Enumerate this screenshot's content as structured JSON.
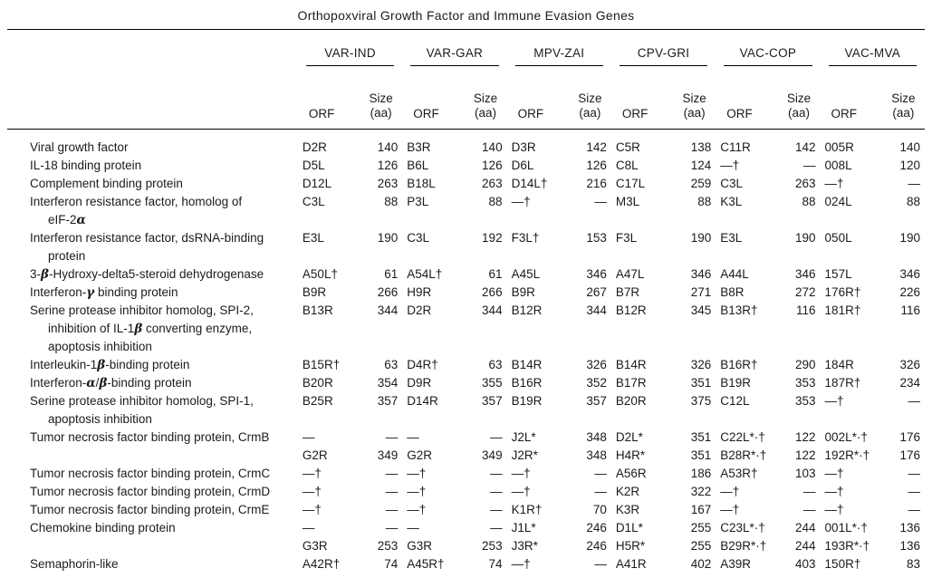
{
  "title": "Orthopoxviral Growth Factor and Immune Evasion Genes",
  "columns": {
    "orf_label": "ORF",
    "size_label_line1": "Size",
    "size_label_line2": "(aa)"
  },
  "viruses": [
    "VAR-IND",
    "VAR-GAR",
    "MPV-ZAI",
    "CPV-GRI",
    "VAC-COP",
    "VAC-MVA"
  ],
  "rows": [
    {
      "label": "Viral growth factor",
      "indent": false,
      "cells": [
        "D2R",
        "140",
        "B3R",
        "140",
        "D3R",
        "142",
        "C5R",
        "138",
        "C11R",
        "142",
        "005R",
        "140"
      ]
    },
    {
      "label": "IL-18 binding protein",
      "indent": false,
      "cells": [
        "D5L",
        "126",
        "B6L",
        "126",
        "D6L",
        "126",
        "C8L",
        "124",
        "—†",
        "—",
        "008L",
        "120"
      ]
    },
    {
      "label": "Complement binding protein",
      "indent": false,
      "cells": [
        "D12L",
        "263",
        "B18L",
        "263",
        "D14L†",
        "216",
        "C17L",
        "259",
        "C3L",
        "263",
        "—†",
        "—"
      ]
    },
    {
      "label": "Interferon resistance factor, homolog of",
      "indent": false,
      "cells": [
        "C3L",
        "88",
        "P3L",
        "88",
        "—†",
        "—",
        "M3L",
        "88",
        "K3L",
        "88",
        "024L",
        "88"
      ]
    },
    {
      "label": "eIF-2α",
      "indent": true,
      "cells": []
    },
    {
      "label": "Interferon resistance factor, dsRNA-binding",
      "indent": false,
      "cells": [
        "E3L",
        "190",
        "C3L",
        "192",
        "F3L†",
        "153",
        "F3L",
        "190",
        "E3L",
        "190",
        "050L",
        "190"
      ]
    },
    {
      "label": "protein",
      "indent": true,
      "cells": []
    },
    {
      "label": "3-β-Hydroxy-delta5-steroid dehydrogenase",
      "indent": false,
      "cells": [
        "A50L†",
        "61",
        "A54L†",
        "61",
        "A45L",
        "346",
        "A47L",
        "346",
        "A44L",
        "346",
        "157L",
        "346"
      ]
    },
    {
      "label": "Interferon-γ binding protein",
      "indent": false,
      "cells": [
        "B9R",
        "266",
        "H9R",
        "266",
        "B9R",
        "267",
        "B7R",
        "271",
        "B8R",
        "272",
        "176R†",
        "226"
      ]
    },
    {
      "label": "Serine protease inhibitor homolog, SPI-2,",
      "indent": false,
      "cells": [
        "B13R",
        "344",
        "D2R",
        "344",
        "B12R",
        "344",
        "B12R",
        "345",
        "B13R†",
        "116",
        "181R†",
        "116"
      ]
    },
    {
      "label": "inhibition of IL-1β converting enzyme,",
      "indent": true,
      "cells": []
    },
    {
      "label": "apoptosis inhibition",
      "indent": true,
      "cells": []
    },
    {
      "label": "Interleukin-1β-binding protein",
      "indent": false,
      "cells": [
        "B15R†",
        "63",
        "D4R†",
        "63",
        "B14R",
        "326",
        "B14R",
        "326",
        "B16R†",
        "290",
        "184R",
        "326"
      ]
    },
    {
      "label": "Interferon-α/β-binding protein",
      "indent": false,
      "cells": [
        "B20R",
        "354",
        "D9R",
        "355",
        "B16R",
        "352",
        "B17R",
        "351",
        "B19R",
        "353",
        "187R†",
        "234"
      ]
    },
    {
      "label": "Serine protease inhibitor homolog, SPI-1,",
      "indent": false,
      "cells": [
        "B25R",
        "357",
        "D14R",
        "357",
        "B19R",
        "357",
        "B20R",
        "375",
        "C12L",
        "353",
        "—†",
        "—"
      ]
    },
    {
      "label": "apoptosis inhibition",
      "indent": true,
      "cells": []
    },
    {
      "label": "Tumor necrosis factor binding protein, CrmB",
      "indent": false,
      "cells": [
        "—",
        "—",
        "—",
        "—",
        "J2L*",
        "348",
        "D2L*",
        "351",
        "C22L*·†",
        "122",
        "002L*·†",
        "176"
      ]
    },
    {
      "label": "",
      "indent": false,
      "cells": [
        "G2R",
        "349",
        "G2R",
        "349",
        "J2R*",
        "348",
        "H4R*",
        "351",
        "B28R*·†",
        "122",
        "192R*·†",
        "176"
      ]
    },
    {
      "label": "Tumor necrosis factor binding protein, CrmC",
      "indent": false,
      "cells": [
        "—†",
        "—",
        "—†",
        "—",
        "—†",
        "—",
        "A56R",
        "186",
        "A53R†",
        "103",
        "—†",
        "—"
      ]
    },
    {
      "label": "Tumor necrosis factor binding protein, CrmD",
      "indent": false,
      "cells": [
        "—†",
        "—",
        "—†",
        "—",
        "—†",
        "—",
        "K2R",
        "322",
        "—†",
        "—",
        "—†",
        "—"
      ]
    },
    {
      "label": "Tumor necrosis factor binding protein, CrmE",
      "indent": false,
      "cells": [
        "—†",
        "—",
        "—†",
        "—",
        "K1R†",
        "70",
        "K3R",
        "167",
        "—†",
        "—",
        "—†",
        "—"
      ]
    },
    {
      "label": "Chemokine binding protein",
      "indent": false,
      "cells": [
        "—",
        "—",
        "—",
        "—",
        "J1L*",
        "246",
        "D1L*",
        "255",
        "C23L*·†",
        "244",
        "001L*·†",
        "136"
      ]
    },
    {
      "label": "",
      "indent": false,
      "cells": [
        "G3R",
        "253",
        "G3R",
        "253",
        "J3R*",
        "246",
        "H5R*",
        "255",
        "B29R*·†",
        "244",
        "193R*·†",
        "136"
      ]
    },
    {
      "label": "Semaphorin-like",
      "indent": false,
      "cells": [
        "A42R†",
        "74",
        "A45R†",
        "74",
        "—†",
        "—",
        "A41R",
        "402",
        "A39R",
        "403",
        "150R†",
        "83"
      ]
    }
  ]
}
